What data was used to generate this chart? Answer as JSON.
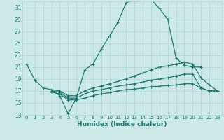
{
  "xlabel": "Humidex (Indice chaleur)",
  "bg_color": "#cce9e8",
  "grid_color": "#aad4d3",
  "line_color": "#1a7a6e",
  "xlim": [
    -0.5,
    23.5
  ],
  "ylim": [
    13,
    32
  ],
  "yticks": [
    13,
    15,
    17,
    19,
    21,
    23,
    25,
    27,
    29,
    31
  ],
  "xticks": [
    0,
    1,
    2,
    3,
    4,
    5,
    6,
    7,
    8,
    9,
    10,
    11,
    12,
    13,
    14,
    15,
    16,
    17,
    18,
    19,
    20,
    21,
    22,
    23
  ],
  "curve1_x": [
    0,
    1,
    2,
    3,
    4,
    5,
    6,
    7,
    8,
    9,
    10,
    11,
    12,
    13,
    14,
    15,
    16,
    17,
    18,
    19,
    20,
    21
  ],
  "curve1_y": [
    21.5,
    18.8,
    17.5,
    17.2,
    16.2,
    13.2,
    15.8,
    20.5,
    21.5,
    24.0,
    26.2,
    28.5,
    31.8,
    32.2,
    32.5,
    32.3,
    30.8,
    29.0,
    22.5,
    21.3,
    21.0,
    21.0
  ],
  "curve2_x": [
    3,
    4,
    5,
    6,
    7,
    8,
    9,
    10,
    11,
    12,
    13,
    14,
    15,
    16,
    17,
    18,
    19,
    20,
    21,
    22,
    23
  ],
  "curve2_y": [
    17.2,
    17.0,
    16.2,
    16.2,
    17.0,
    17.5,
    17.8,
    18.2,
    18.6,
    19.0,
    19.5,
    20.0,
    20.5,
    21.0,
    21.2,
    21.5,
    21.8,
    21.5,
    19.2,
    18.0,
    17.0
  ],
  "curve3_x": [
    3,
    4,
    5,
    6,
    7,
    8,
    9,
    10,
    11,
    12,
    13,
    14,
    15,
    16,
    17,
    18,
    19,
    20,
    21,
    22,
    23
  ],
  "curve3_y": [
    17.0,
    16.8,
    15.8,
    15.8,
    16.5,
    17.0,
    17.2,
    17.5,
    17.8,
    18.0,
    18.2,
    18.5,
    18.8,
    19.0,
    19.2,
    19.5,
    19.8,
    19.8,
    17.5,
    17.0,
    17.0
  ],
  "curve4_x": [
    3,
    4,
    5,
    6,
    7,
    8,
    9,
    10,
    11,
    12,
    13,
    14,
    15,
    16,
    17,
    18,
    19,
    20,
    21,
    22,
    23
  ],
  "curve4_y": [
    16.8,
    16.5,
    15.5,
    15.5,
    15.8,
    16.2,
    16.5,
    16.7,
    17.0,
    17.2,
    17.3,
    17.5,
    17.7,
    17.8,
    17.9,
    18.0,
    18.2,
    18.2,
    17.5,
    17.0,
    17.0
  ]
}
